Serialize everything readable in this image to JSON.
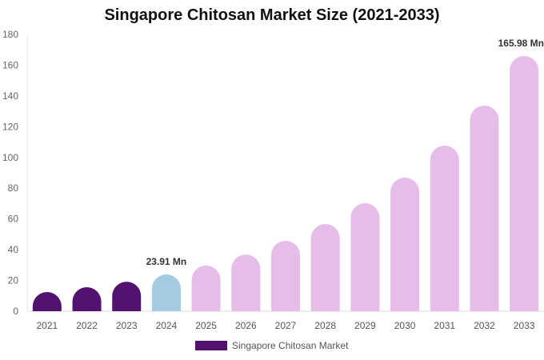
{
  "chart_data": {
    "type": "bar",
    "title": "Singapore Chitosan Market Size (2021-2033)",
    "categories": [
      "2021",
      "2022",
      "2023",
      "2024",
      "2025",
      "2026",
      "2027",
      "2028",
      "2029",
      "2030",
      "2031",
      "2032",
      "2033"
    ],
    "series": [
      {
        "name": "Singapore Chitosan Market",
        "values": [
          12.5,
          15.6,
          19.2,
          23.91,
          29.7,
          36.9,
          45.8,
          56.7,
          70.2,
          86.9,
          107.7,
          133.7,
          165.98
        ]
      }
    ],
    "data_labels": {
      "3": "23.91 Mn",
      "12": "165.98 Mn"
    },
    "ylim": [
      0,
      180
    ],
    "yticks": [
      0,
      20,
      40,
      60,
      80,
      100,
      120,
      140,
      160,
      180
    ],
    "grid": false,
    "legend": "bottom",
    "colors": {
      "historical": "#541270",
      "current": "#a4cbdf",
      "forecast": "#e6bde8"
    }
  }
}
